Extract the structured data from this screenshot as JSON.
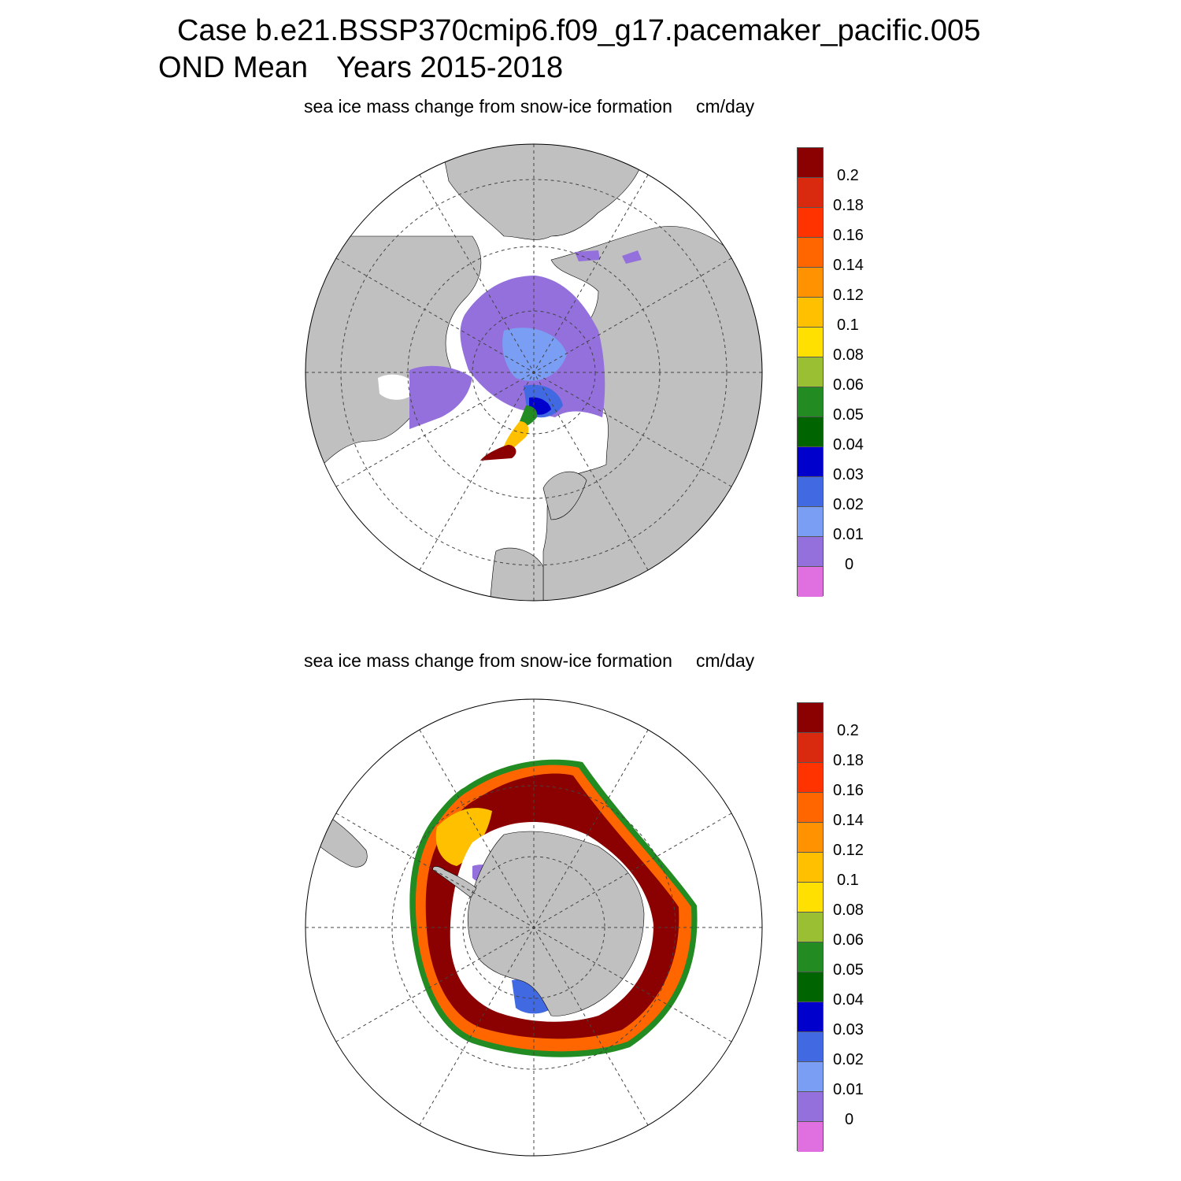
{
  "header": {
    "title_line1": "Case b.e21.BSSP370cmip6.f09_g17.pacemaker_pacific.005",
    "title_season": "OND Mean",
    "title_years": "Years 2015-2018"
  },
  "panels": [
    {
      "subtitle": "sea ice mass change from snow-ice formation",
      "units": "cm/day",
      "hemisphere": "north"
    },
    {
      "subtitle": "sea ice mass change from snow-ice formation",
      "units": "cm/day",
      "hemisphere": "south"
    }
  ],
  "colorbar": {
    "labels": [
      "0.2",
      "0.18",
      "0.16",
      "0.14",
      "0.12",
      "0.1",
      "0.08",
      "0.06",
      "0.05",
      "0.04",
      "0.03",
      "0.02",
      "0.01",
      "0"
    ],
    "colors": [
      "#8b0000",
      "#d9290f",
      "#ff3300",
      "#ff6600",
      "#ff9200",
      "#ffc000",
      "#ffe000",
      "#9abf32",
      "#228b22",
      "#006400",
      "#0000cd",
      "#4169e1",
      "#7b9ef5",
      "#9370db",
      "#e070e0"
    ]
  },
  "styles": {
    "land": "#c0c0c0",
    "ocean": "#ffffff",
    "grid": "#444444"
  }
}
